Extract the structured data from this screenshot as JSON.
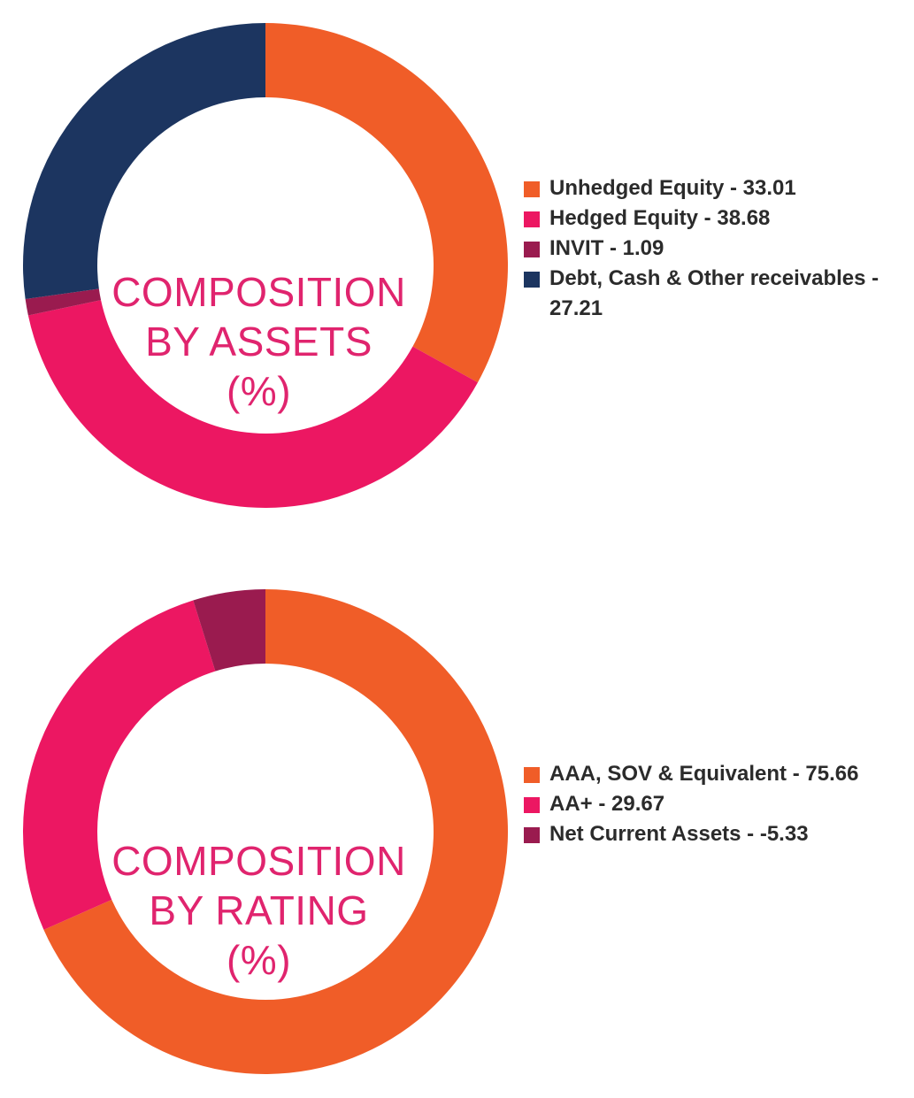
{
  "chart_data": [
    {
      "type": "pie",
      "variant": "donut",
      "title_lines": [
        "COMPOSITION",
        "BY ASSETS",
        "(%)"
      ],
      "categories": [
        "Unhedged Equity",
        "Hedged Equity",
        "INVIT",
        "Debt, Cash & Other receivables"
      ],
      "values": [
        33.01,
        38.68,
        1.09,
        27.21
      ],
      "colors": [
        "#f05d28",
        "#ec1762",
        "#9a1b4f",
        "#1c3560"
      ],
      "legend_labels": [
        "Unhedged Equity - 33.01",
        "Hedged Equity - 38.68",
        "INVIT - 1.09",
        "Debt, Cash & Other receivables - 27.21"
      ],
      "legend_position": "right"
    },
    {
      "type": "pie",
      "variant": "donut",
      "title_lines": [
        "COMPOSITION",
        "BY RATING",
        "(%)"
      ],
      "categories": [
        "AAA, SOV & Equivalent",
        "AA+",
        "Net Current Assets"
      ],
      "values": [
        75.66,
        29.67,
        -5.33
      ],
      "colors": [
        "#f05d28",
        "#ec1762",
        "#9a1b4f"
      ],
      "legend_labels": [
        "AAA, SOV & Equivalent - 75.66",
        "AA+ - 29.67",
        "Net Current Assets - -5.33"
      ],
      "legend_position": "right"
    }
  ]
}
